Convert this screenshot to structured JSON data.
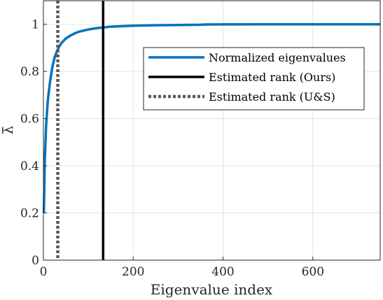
{
  "chart_data": {
    "type": "line",
    "xlabel": "Eigenvalue index",
    "ylabel": "λ̄",
    "xlim": [
      0,
      750
    ],
    "ylim": [
      0,
      1.1
    ],
    "xticks": [
      "0",
      "200",
      "400",
      "600"
    ],
    "yticks": [
      "0",
      "0.2",
      "0.4",
      "0.6",
      "0.8",
      "1"
    ],
    "grid": true,
    "legend_position": "top-right",
    "series": [
      {
        "name": "Normalized eigenvalues",
        "color": "#0072BD",
        "style": "solid",
        "x": [
          1,
          3,
          6,
          10,
          15,
          20,
          25,
          30,
          35,
          40,
          50,
          60,
          70,
          80,
          100,
          120,
          150,
          200,
          250,
          300,
          350,
          360,
          400,
          500,
          600,
          700,
          750
        ],
        "y": [
          0.2,
          0.42,
          0.57,
          0.68,
          0.76,
          0.82,
          0.86,
          0.885,
          0.905,
          0.92,
          0.94,
          0.952,
          0.962,
          0.969,
          0.978,
          0.984,
          0.99,
          0.994,
          0.996,
          0.997,
          0.998,
          0.999,
          0.9995,
          1.0,
          1.0,
          1.0,
          1.0
        ]
      },
      {
        "name": "Estimated rank (Ours)",
        "color": "#000000",
        "style": "solid",
        "vline_x": 133
      },
      {
        "name": "Estimated rank (U&S)",
        "color": "#595959",
        "style": "dotted",
        "vline_x": 32
      }
    ]
  }
}
